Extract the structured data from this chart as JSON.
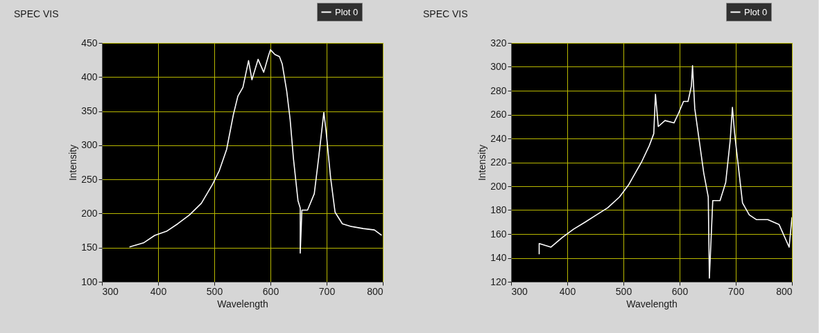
{
  "chart_data": [
    {
      "type": "line",
      "title": "SPEC VIS",
      "xlabel": "Wavelength",
      "ylabel": "Intensity",
      "x": [
        349,
        374,
        394,
        415,
        435,
        456,
        477,
        497,
        509,
        522,
        534,
        542,
        551,
        561,
        567,
        578,
        588,
        596,
        600,
        608,
        616,
        621,
        629,
        635,
        641,
        649,
        653,
        653,
        656,
        666,
        678,
        686,
        695,
        699,
        707,
        715,
        728,
        744,
        765,
        785,
        798
      ],
      "series": [
        {
          "name": "Plot 0",
          "color": "#ffffff",
          "values": [
            151,
            157,
            168,
            174,
            185,
            198,
            215,
            243,
            263,
            294,
            345,
            372,
            385,
            424,
            396,
            426,
            407,
            430,
            440,
            433,
            430,
            419,
            379,
            338,
            280,
            219,
            208,
            142,
            205,
            205,
            229,
            283,
            348,
            321,
            253,
            202,
            185,
            181,
            178,
            176,
            168
          ]
        }
      ],
      "xlim": [
        300,
        800
      ],
      "xticks": [
        300,
        400,
        500,
        600,
        700,
        800
      ],
      "ylim": [
        100,
        450
      ],
      "yticks": [
        100,
        150,
        200,
        250,
        300,
        350,
        400,
        450
      ],
      "grid": true,
      "legend": "top right"
    },
    {
      "type": "line",
      "title": "SPEC VIS",
      "xlabel": "Wavelength",
      "ylabel": "Intensity",
      "x": [
        350,
        350,
        371,
        391,
        411,
        432,
        452,
        472,
        493,
        509,
        521,
        533,
        546,
        554,
        557,
        562,
        574,
        590,
        598,
        607,
        615,
        621,
        623,
        627,
        635,
        643,
        651,
        653,
        659,
        672,
        682,
        690,
        694,
        698,
        704,
        712,
        724,
        737,
        757,
        777,
        795,
        800
      ],
      "series": [
        {
          "name": "Plot 0",
          "color": "#ffffff",
          "values": [
            143,
            152,
            149,
            157,
            164,
            170,
            176,
            182,
            191,
            201,
            211,
            221,
            234,
            244,
            277,
            250,
            255,
            253,
            261,
            271,
            271,
            284,
            301,
            265,
            238,
            211,
            191,
            123,
            188,
            188,
            203,
            238,
            266,
            244,
            219,
            186,
            176,
            172,
            172,
            168,
            149,
            174
          ]
        }
      ],
      "xlim": [
        300,
        800
      ],
      "xticks": [
        300,
        400,
        500,
        600,
        700,
        800
      ],
      "ylim": [
        120,
        320
      ],
      "yticks": [
        120,
        140,
        160,
        180,
        200,
        220,
        240,
        260,
        280,
        300,
        320
      ],
      "grid": true,
      "legend": "top right"
    }
  ]
}
